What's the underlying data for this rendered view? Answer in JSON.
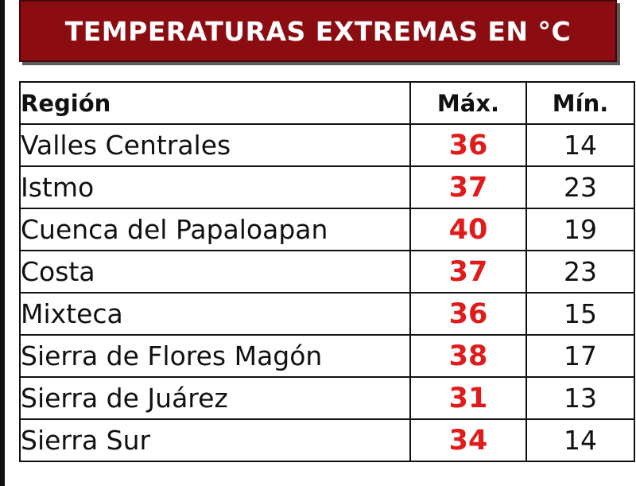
{
  "title": "TEMPERATURAS EXTREMAS EN °C",
  "headers": {
    "region": "Región",
    "max": "Máx.",
    "min": "Mín."
  },
  "colors": {
    "banner": "#8b0d12",
    "max_value": "#e01b1b"
  },
  "rows": [
    {
      "region": "Valles Centrales",
      "max": "36",
      "min": "14"
    },
    {
      "region": "Istmo",
      "max": "37",
      "min": "23"
    },
    {
      "region": "Cuenca del Papaloapan",
      "max": "40",
      "min": "19"
    },
    {
      "region": "Costa",
      "max": "37",
      "min": "23"
    },
    {
      "region": "Mixteca",
      "max": "36",
      "min": "15"
    },
    {
      "region": "Sierra de Flores Magón",
      "max": "38",
      "min": "17"
    },
    {
      "region": "Sierra de Juárez",
      "max": "31",
      "min": "13"
    },
    {
      "region": "Sierra Sur",
      "max": "34",
      "min": "14"
    }
  ]
}
